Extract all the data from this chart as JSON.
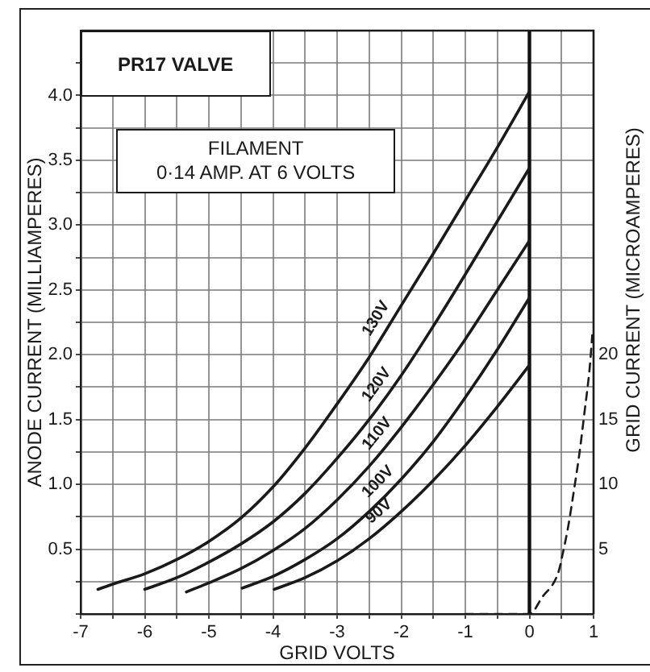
{
  "chart_data": {
    "type": "line",
    "title": "PR17 VALVE",
    "xlabel": "GRID VOLTS",
    "ylabel": "ANODE CURRENT (MILLIAMPERES)",
    "y2label": "GRID CURRENT (MICROAMPERES)",
    "annotations": [
      "FILAMENT",
      "0·14 AMP. AT 6 VOLTS"
    ],
    "xlim": [
      -7,
      1
    ],
    "xticks": [
      -7,
      {
        "value": -6.5,
        "label": null
      },
      -6,
      {
        "value": -5.5,
        "label": null
      },
      -5,
      {
        "value": -4.5,
        "label": null
      },
      -4,
      {
        "value": -3.5,
        "label": null
      },
      -3,
      {
        "value": -2.5,
        "label": null
      },
      -2,
      {
        "value": -1.5,
        "label": null
      },
      -1,
      {
        "value": -0.5,
        "label": null
      },
      0,
      {
        "value": 0.5,
        "label": null
      },
      1
    ],
    "ylim": [
      0,
      4.5
    ],
    "yticks": [
      {
        "value": 0,
        "label": null
      },
      {
        "value": 0.25,
        "label": null
      },
      0.5,
      {
        "value": 0.75,
        "label": null
      },
      {
        "value": 1,
        "label": "1.0"
      },
      {
        "value": 1.25,
        "label": null
      },
      1.5,
      {
        "value": 1.75,
        "label": null
      },
      {
        "value": 2,
        "label": "2.0"
      },
      {
        "value": 2.25,
        "label": null
      },
      2.5,
      {
        "value": 2.75,
        "label": null
      },
      {
        "value": 3,
        "label": "3.0"
      },
      {
        "value": 3.25,
        "label": null
      },
      3.5,
      {
        "value": 3.75,
        "label": null
      },
      {
        "value": 4,
        "label": "4.0"
      },
      {
        "value": 4.25,
        "label": null
      }
    ],
    "y2lim": [
      0,
      45
    ],
    "y2ticks": [
      5,
      10,
      15,
      20
    ],
    "grid": true,
    "legend": false,
    "marker": "none",
    "line_style": "solid",
    "ref_lines": [
      {
        "axis": "x",
        "value": 0,
        "color": "#111111"
      }
    ],
    "series": [
      {
        "name": "130V",
        "color": "#1a1a1a",
        "x": [
          -6.73,
          -6.5,
          -6,
          -5.5,
          -5,
          -4.5,
          -4,
          -3.5,
          -3,
          -2.5,
          -2,
          -1.5,
          -1,
          -0.5,
          0
        ],
        "values": [
          0.19,
          0.23,
          0.31,
          0.42,
          0.56,
          0.74,
          0.98,
          1.28,
          1.62,
          1.98,
          2.38,
          2.78,
          3.19,
          3.6,
          4.03
        ]
      },
      {
        "name": "120V",
        "color": "#1a1a1a",
        "x": [
          -6,
          -5.5,
          -5,
          -4.5,
          -4,
          -3.5,
          -3,
          -2.5,
          -2,
          -1.5,
          -1,
          -0.5,
          0
        ],
        "values": [
          0.19,
          0.28,
          0.4,
          0.54,
          0.71,
          0.93,
          1.2,
          1.5,
          1.84,
          2.22,
          2.62,
          3.03,
          3.44
        ]
      },
      {
        "name": "110V",
        "color": "#1a1a1a",
        "x": [
          -5.35,
          -5,
          -4.5,
          -4,
          -3.5,
          -3,
          -2.5,
          -2,
          -1.5,
          -1,
          -0.5,
          0
        ],
        "values": [
          0.17,
          0.24,
          0.35,
          0.49,
          0.66,
          0.88,
          1.14,
          1.44,
          1.77,
          2.12,
          2.5,
          2.88
        ]
      },
      {
        "name": "100V",
        "color": "#1a1a1a",
        "x": [
          -4.48,
          -4,
          -3.5,
          -3,
          -2.5,
          -2,
          -1.5,
          -1,
          -0.5,
          0
        ],
        "values": [
          0.2,
          0.29,
          0.42,
          0.58,
          0.79,
          1.04,
          1.33,
          1.67,
          2.04,
          2.44
        ]
      },
      {
        "name": "90V",
        "color": "#1a1a1a",
        "x": [
          -3.98,
          -3.5,
          -3,
          -2.5,
          -2,
          -1.5,
          -1,
          -0.5,
          0
        ],
        "values": [
          0.19,
          0.28,
          0.41,
          0.58,
          0.79,
          1.03,
          1.3,
          1.6,
          1.92
        ]
      },
      {
        "color": "#1a1a1a",
        "axis": "y2",
        "line_style": "dashed",
        "x": [
          -1,
          0,
          0.2,
          0.45,
          0.53,
          0.61,
          0.69,
          0.78,
          0.86,
          0.94,
          0.98
        ],
        "values": [
          0,
          0,
          1.3,
          3.2,
          4.9,
          6.9,
          9.4,
          12.4,
          15.6,
          19,
          21.5
        ]
      }
    ]
  }
}
